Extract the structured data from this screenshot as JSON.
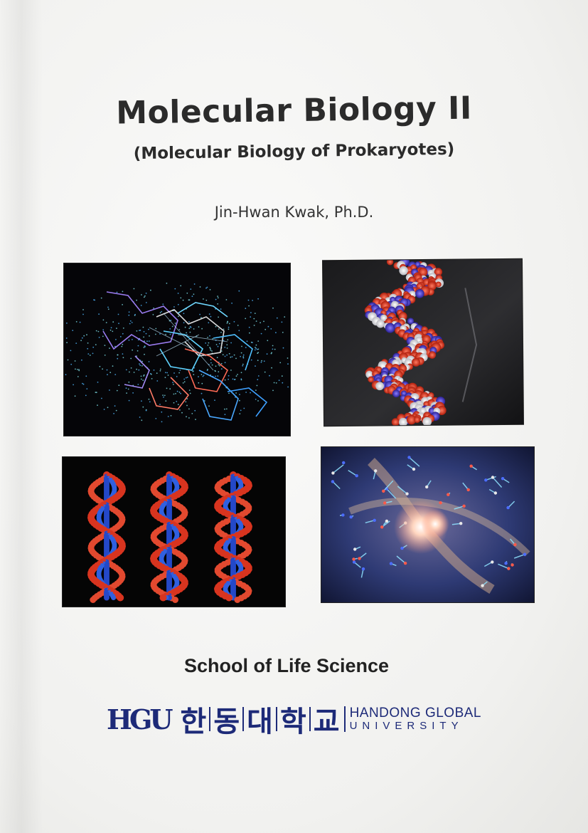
{
  "cover": {
    "title": "Molecular Biology II",
    "subtitle": "(Molecular Biology of Prokaryotes)",
    "author": "Jin-Hwan Kwak, Ph.D.",
    "school": "School of Life Science",
    "logo": {
      "mark": "HGU",
      "korean_chars": [
        "한",
        "동",
        "대",
        "학",
        "교"
      ],
      "english_line1": "HANDONG GLOBAL",
      "english_line2": "UNIVERSITY"
    }
  },
  "figures": [
    {
      "name": "molecular-wireframe-image",
      "subject": "wireframe molecular structure with dotted surface"
    },
    {
      "name": "dna-spacefill-image",
      "subject": "space-filling DNA double helix"
    },
    {
      "name": "dna-three-helices-image",
      "subject": "three DNA double helix forms"
    },
    {
      "name": "dna-helix-glow-image",
      "subject": "DNA helix with glowing center"
    }
  ],
  "colors": {
    "brand": "#1d2a78",
    "text": "#2b2b2b",
    "helix_red": "#d8341f",
    "helix_blue": "#2448c8"
  }
}
